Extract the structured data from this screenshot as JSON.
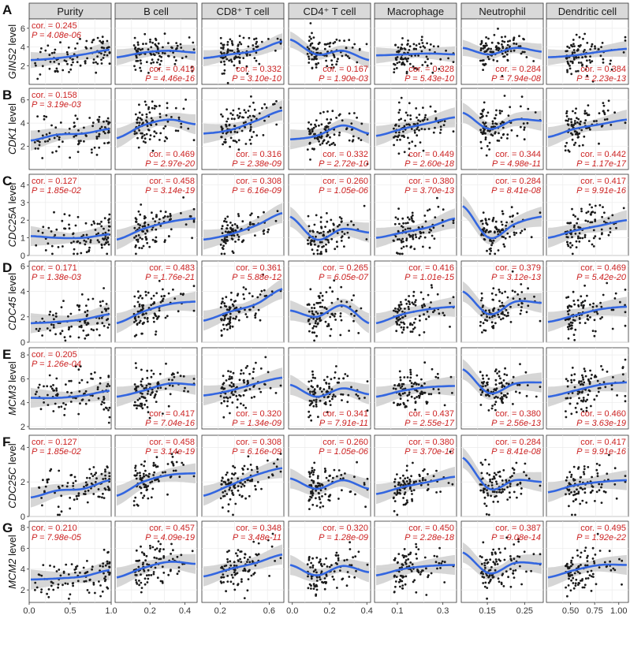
{
  "chart_data": {
    "type": "scatter",
    "columns": [
      "Purity",
      "B cell",
      "CD8⁺ T cell",
      "CD4⁺ T cell",
      "Macrophage",
      "Neutrophil",
      "Dendritic cell"
    ],
    "x_ticks": [
      [
        0.0,
        0.5,
        1.0
      ],
      [
        0.2,
        0.4
      ],
      [
        0.2,
        0.6
      ],
      [
        0.0,
        0.2,
        0.4
      ],
      [
        0.1,
        0.3
      ],
      [
        0.15,
        0.25
      ],
      [
        0.5,
        0.75,
        1.0
      ]
    ],
    "x_tick_labels": [
      [
        "0.0",
        "0.5",
        "1.0"
      ],
      [
        "0.2",
        "0.4"
      ],
      [
        "0.2",
        "0.6"
      ],
      [
        "0.0",
        "0.2",
        "0.4"
      ],
      [
        "0.1",
        "0.3"
      ],
      [
        "0.15",
        "0.25"
      ],
      [
        "0.50",
        "0.75",
        "1.00"
      ]
    ],
    "xlim": [
      [
        0.0,
        1.0
      ],
      [
        0.0,
        0.47
      ],
      [
        0.05,
        0.72
      ],
      [
        -0.02,
        0.42
      ],
      [
        0.0,
        0.36
      ],
      [
        0.08,
        0.3
      ],
      [
        0.25,
        1.1
      ]
    ],
    "rows": [
      {
        "panel": "A",
        "gene": "GINS2",
        "ylabel_suffix": "level",
        "ylim": [
          0,
          7
        ],
        "yticks": [
          2,
          4,
          6
        ],
        "trend": [
          [
            2.6,
            2.8,
            3.2,
            3.7
          ],
          [
            2.9,
            3.4,
            3.6,
            3.4
          ],
          [
            2.8,
            3.2,
            3.6,
            4.6
          ],
          [
            4.8,
            3.2,
            3.6,
            2.6
          ],
          [
            3.1,
            3.2,
            3.3,
            3.2
          ],
          [
            3.9,
            3.2,
            3.9,
            3.5
          ],
          [
            2.9,
            3.1,
            3.5,
            3.8
          ]
        ],
        "stats": [
          {
            "cor": "cor. = 0.245",
            "p": "P = 4.08e-06",
            "pos": "top"
          },
          {
            "cor": "cor. = 0.419",
            "p": "P = 4.46e-16",
            "pos": "bottom"
          },
          {
            "cor": "cor. = 0.332",
            "p": "P = 3.10e-10",
            "pos": "bottom"
          },
          {
            "cor": "cor. = 0.167",
            "p": "P = 1.90e-03",
            "pos": "bottom"
          },
          {
            "cor": "cor. = 0.328",
            "p": "P = 5.43e-10",
            "pos": "bottom"
          },
          {
            "cor": "cor. = 0.284",
            "p": "P = 7.94e-08",
            "pos": "bottom"
          },
          {
            "cor": "cor. = 0.384",
            "p": "P = 2.23e-13",
            "pos": "bottom"
          }
        ]
      },
      {
        "panel": "B",
        "gene": "CDK1",
        "ylabel_suffix": "level",
        "ylim": [
          0,
          7
        ],
        "yticks": [
          2,
          4,
          6
        ],
        "trend": [
          [
            2.5,
            3.0,
            3.1,
            3.5
          ],
          [
            2.7,
            3.8,
            4.3,
            3.9
          ],
          [
            3.1,
            3.4,
            4.2,
            5.1
          ],
          [
            2.6,
            2.9,
            3.8,
            3.1
          ],
          [
            2.9,
            3.5,
            4.0,
            4.5
          ],
          [
            4.9,
            3.5,
            4.3,
            4.2
          ],
          [
            2.8,
            3.5,
            3.9,
            4.3
          ]
        ],
        "stats": [
          {
            "cor": "cor. = 0.158",
            "p": "P = 3.19e-03",
            "pos": "top"
          },
          {
            "cor": "cor. = 0.469",
            "p": "P = 2.97e-20",
            "pos": "bottom"
          },
          {
            "cor": "cor. = 0.316",
            "p": "P = 2.38e-09",
            "pos": "bottom"
          },
          {
            "cor": "cor. = 0.332",
            "p": "P = 2.72e-10",
            "pos": "bottom"
          },
          {
            "cor": "cor. = 0.449",
            "p": "P = 2.60e-18",
            "pos": "bottom"
          },
          {
            "cor": "cor. = 0.344",
            "p": "P = 4.98e-11",
            "pos": "bottom"
          },
          {
            "cor": "cor. = 0.442",
            "p": "P = 1.17e-17",
            "pos": "bottom"
          }
        ]
      },
      {
        "panel": "C",
        "gene": "CDC25A",
        "ylabel_suffix": "level",
        "ylim": [
          0,
          4.6
        ],
        "yticks": [
          0,
          1,
          2,
          3,
          4
        ],
        "trend": [
          [
            1.1,
            1.0,
            1.0,
            1.2
          ],
          [
            0.9,
            1.5,
            1.9,
            2.1
          ],
          [
            0.9,
            1.2,
            1.7,
            2.4
          ],
          [
            2.2,
            0.9,
            1.5,
            1.3
          ],
          [
            1.0,
            1.3,
            1.6,
            2.1
          ],
          [
            2.8,
            1.0,
            1.8,
            2.2
          ],
          [
            1.0,
            1.4,
            1.7,
            2.0
          ]
        ],
        "stats": [
          {
            "cor": "cor. = 0.127",
            "p": "P = 1.85e-02",
            "pos": "top"
          },
          {
            "cor": "cor. = 0.458",
            "p": "P = 3.14e-19",
            "pos": "top"
          },
          {
            "cor": "cor. = 0.308",
            "p": "P = 6.16e-09",
            "pos": "top"
          },
          {
            "cor": "cor. = 0.260",
            "p": "P = 1.05e-06",
            "pos": "top"
          },
          {
            "cor": "cor. = 0.380",
            "p": "P = 3.70e-13",
            "pos": "top"
          },
          {
            "cor": "cor. = 0.284",
            "p": "P = 8.41e-08",
            "pos": "top"
          },
          {
            "cor": "cor. = 0.417",
            "p": "P = 9.91e-16",
            "pos": "top"
          }
        ]
      },
      {
        "panel": "D",
        "gene": "CDC45",
        "ylabel_suffix": "level",
        "ylim": [
          0,
          6.4
        ],
        "yticks": [
          0,
          2,
          4,
          6
        ],
        "trend": [
          [
            1.5,
            1.6,
            1.8,
            2.2
          ],
          [
            1.5,
            2.4,
            3.0,
            3.2
          ],
          [
            1.7,
            2.4,
            3.0,
            4.2
          ],
          [
            2.5,
            2.0,
            2.9,
            1.5
          ],
          [
            1.5,
            2.2,
            2.6,
            2.8
          ],
          [
            4.0,
            2.2,
            3.2,
            3.1
          ],
          [
            1.6,
            2.1,
            2.6,
            2.8
          ]
        ],
        "stats": [
          {
            "cor": "cor. = 0.171",
            "p": "P = 1.38e-03",
            "pos": "top"
          },
          {
            "cor": "cor. = 0.483",
            "p": "P = 1.76e-21",
            "pos": "top"
          },
          {
            "cor": "cor. = 0.361",
            "p": "P = 5.88e-12",
            "pos": "top"
          },
          {
            "cor": "cor. = 0.265",
            "p": "P = 6.05e-07",
            "pos": "top"
          },
          {
            "cor": "cor. = 0.416",
            "p": "P = 1.01e-15",
            "pos": "top"
          },
          {
            "cor": "cor. = 0.379",
            "p": "P = 3.12e-13",
            "pos": "top"
          },
          {
            "cor": "cor. = 0.469",
            "p": "P = 5.42e-20",
            "pos": "top"
          }
        ]
      },
      {
        "panel": "E",
        "gene": "MCM3",
        "ylabel_suffix": "level",
        "ylim": [
          1.8,
          8.6
        ],
        "yticks": [
          2,
          4,
          6,
          8
        ],
        "trend": [
          [
            4.4,
            4.4,
            4.6,
            5.0
          ],
          [
            4.5,
            5.0,
            5.6,
            5.5
          ],
          [
            4.6,
            5.0,
            5.6,
            6.1
          ],
          [
            5.5,
            4.5,
            5.2,
            4.7
          ],
          [
            4.5,
            5.0,
            5.3,
            5.4
          ],
          [
            6.8,
            4.8,
            5.6,
            5.7
          ],
          [
            4.5,
            5.0,
            5.5,
            5.7
          ]
        ],
        "stats": [
          {
            "cor": "cor. = 0.205",
            "p": "P = 1.26e-04",
            "pos": "top"
          },
          {
            "cor": "cor. = 0.417",
            "p": "P = 7.04e-16",
            "pos": "bottom"
          },
          {
            "cor": "cor. = 0.320",
            "p": "P = 1.34e-09",
            "pos": "bottom"
          },
          {
            "cor": "cor. = 0.341",
            "p": "P = 7.91e-11",
            "pos": "bottom"
          },
          {
            "cor": "cor. = 0.437",
            "p": "P = 2.55e-17",
            "pos": "bottom"
          },
          {
            "cor": "cor. = 0.380",
            "p": "P = 2.56e-13",
            "pos": "bottom"
          },
          {
            "cor": "cor. = 0.460",
            "p": "P = 3.63e-19",
            "pos": "bottom"
          }
        ]
      },
      {
        "panel": "F",
        "gene": "CDC25C",
        "ylabel_suffix": "level",
        "ylim": [
          0,
          4.7
        ],
        "yticks": [
          0,
          2,
          4
        ],
        "trend": [
          [
            1.1,
            1.5,
            1.6,
            2.1
          ],
          [
            1.2,
            2.0,
            2.4,
            2.5
          ],
          [
            1.2,
            1.8,
            2.4,
            2.8
          ],
          [
            2.2,
            1.6,
            2.1,
            1.6
          ],
          [
            1.3,
            1.7,
            2.0,
            2.3
          ],
          [
            3.4,
            1.6,
            2.1,
            2.0
          ],
          [
            1.4,
            1.8,
            2.0,
            2.1
          ]
        ],
        "stats": [
          {
            "cor": "cor. = 0.127",
            "p": "P = 1.85e-02",
            "pos": "top"
          },
          {
            "cor": "cor. = 0.458",
            "p": "P = 3.14e-19",
            "pos": "top"
          },
          {
            "cor": "cor. = 0.308",
            "p": "P = 6.16e-09",
            "pos": "top"
          },
          {
            "cor": "cor. = 0.260",
            "p": "P = 1.05e-06",
            "pos": "top"
          },
          {
            "cor": "cor. = 0.380",
            "p": "P = 3.70e-13",
            "pos": "top"
          },
          {
            "cor": "cor. = 0.284",
            "p": "P = 8.41e-08",
            "pos": "top"
          },
          {
            "cor": "cor. = 0.417",
            "p": "P = 9.91e-16",
            "pos": "top"
          }
        ]
      },
      {
        "panel": "G",
        "gene": "MCM2",
        "ylabel_suffix": "level",
        "ylim": [
          0.8,
          8.6
        ],
        "yticks": [
          2,
          4,
          6,
          8
        ],
        "trend": [
          [
            3.0,
            3.1,
            3.3,
            3.9
          ],
          [
            3.2,
            4.1,
            4.7,
            4.5
          ],
          [
            3.3,
            4.0,
            4.6,
            5.4
          ],
          [
            4.4,
            3.4,
            4.3,
            3.7
          ],
          [
            3.4,
            4.0,
            4.3,
            4.4
          ],
          [
            5.6,
            3.6,
            4.6,
            4.5
          ],
          [
            3.2,
            3.9,
            4.4,
            4.4
          ]
        ],
        "stats": [
          {
            "cor": "cor. = 0.210",
            "p": "P = 7.98e-05",
            "pos": "top"
          },
          {
            "cor": "cor. = 0.457",
            "p": "P = 4.09e-19",
            "pos": "top"
          },
          {
            "cor": "cor. = 0.348",
            "p": "P = 3.48e-11",
            "pos": "top"
          },
          {
            "cor": "cor. = 0.320",
            "p": "P = 1.28e-09",
            "pos": "top"
          },
          {
            "cor": "cor. = 0.450",
            "p": "P = 2.28e-18",
            "pos": "top"
          },
          {
            "cor": "cor. = 0.387",
            "p": "P = 9.08e-14",
            "pos": "top"
          },
          {
            "cor": "cor. = 0.495",
            "p": "P = 1.92e-22",
            "pos": "top"
          }
        ]
      }
    ],
    "colors": {
      "points": "#1a1a1a",
      "trend_line": "#3366e0",
      "confidence_band": "#c8c8c8",
      "stat_text": "#cc2222",
      "strip_fill": "#d9d9d9",
      "grid": "#ebebeb"
    },
    "grid": true
  }
}
